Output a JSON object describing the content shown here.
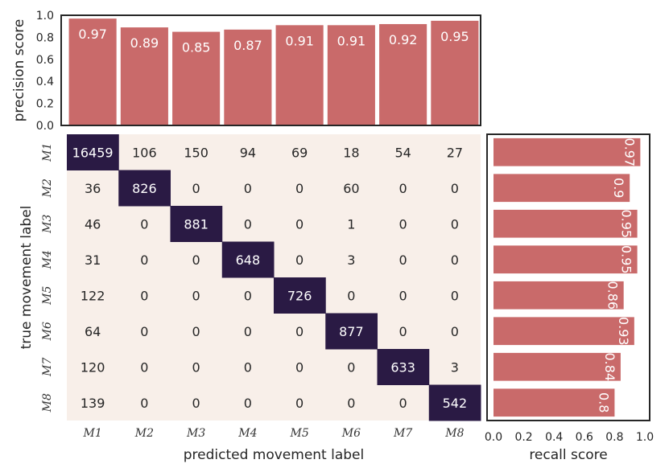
{
  "chart_data": [
    {
      "type": "bar",
      "categories": [
        "M1",
        "M2",
        "M3",
        "M4",
        "M5",
        "M6",
        "M7",
        "M8"
      ],
      "values": [
        0.97,
        0.89,
        0.85,
        0.87,
        0.91,
        0.91,
        0.92,
        0.95
      ],
      "value_labels": [
        "0.97",
        "0.89",
        "0.85",
        "0.87",
        "0.91",
        "0.91",
        "0.92",
        "0.95"
      ],
      "ylabel": "precision score",
      "ylim": [
        0,
        1.0
      ],
      "yticks": [
        "0.0",
        "0.2",
        "0.4",
        "0.6",
        "0.8",
        "1.0"
      ],
      "color": "#c96a6a"
    },
    {
      "type": "heatmap",
      "row_labels": [
        "M1",
        "M2",
        "M3",
        "M4",
        "M5",
        "M6",
        "M7",
        "M8"
      ],
      "col_labels": [
        "M1",
        "M2",
        "M3",
        "M4",
        "M5",
        "M6",
        "M7",
        "M8"
      ],
      "xlabel": "predicted movement label",
      "ylabel": "true movement label",
      "matrix": [
        [
          16459,
          106,
          150,
          94,
          69,
          18,
          54,
          27
        ],
        [
          36,
          826,
          0,
          0,
          0,
          60,
          0,
          0
        ],
        [
          46,
          0,
          881,
          0,
          0,
          1,
          0,
          0
        ],
        [
          31,
          0,
          0,
          648,
          0,
          3,
          0,
          0
        ],
        [
          122,
          0,
          0,
          0,
          726,
          0,
          0,
          0
        ],
        [
          64,
          0,
          0,
          0,
          0,
          877,
          0,
          0
        ],
        [
          120,
          0,
          0,
          0,
          0,
          0,
          633,
          3
        ],
        [
          139,
          0,
          0,
          0,
          0,
          0,
          0,
          542
        ]
      ],
      "low_color": "#f8efe9",
      "high_color": "#2a1a44"
    },
    {
      "type": "bar",
      "orientation": "horizontal",
      "categories": [
        "M1",
        "M2",
        "M3",
        "M4",
        "M5",
        "M6",
        "M7",
        "M8"
      ],
      "values": [
        0.97,
        0.9,
        0.95,
        0.95,
        0.86,
        0.93,
        0.84,
        0.8
      ],
      "value_labels": [
        "0.97",
        "0.9",
        "0.95",
        "0.95",
        "0.86",
        "0.93",
        "0.84",
        "0.8"
      ],
      "xlabel": "recall score",
      "xlim": [
        0,
        1.0
      ],
      "xticks": [
        "0.0",
        "0.2",
        "0.4",
        "0.6",
        "0.8",
        "1.0"
      ],
      "color": "#c96a6a"
    }
  ]
}
